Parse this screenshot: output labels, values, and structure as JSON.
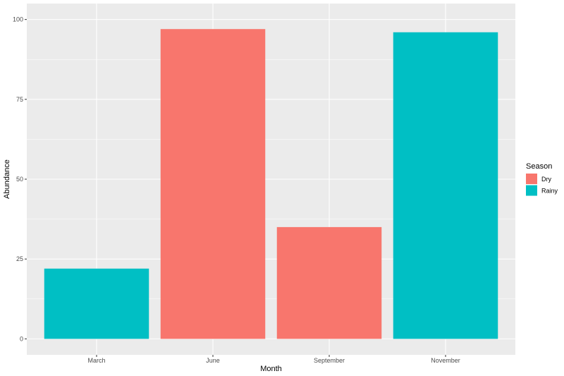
{
  "chart_data": {
    "type": "bar",
    "categories": [
      "March",
      "June",
      "September",
      "November"
    ],
    "values": [
      22,
      97,
      35,
      96
    ],
    "fill_groups": [
      "Rainy",
      "Dry",
      "Dry",
      "Rainy"
    ],
    "xlabel": "Month",
    "ylabel": "Abundance",
    "ylim": [
      0,
      100
    ],
    "yticks": [
      0,
      25,
      50,
      75,
      100
    ],
    "grid": true,
    "legend": {
      "title": "Season",
      "position": "right",
      "entries": [
        {
          "name": "Dry",
          "color": "#F8766D"
        },
        {
          "name": "Rainy",
          "color": "#00BFC4"
        }
      ]
    },
    "colors": {
      "panel_background": "#EBEBEB",
      "gridline": "#FFFFFF"
    }
  }
}
